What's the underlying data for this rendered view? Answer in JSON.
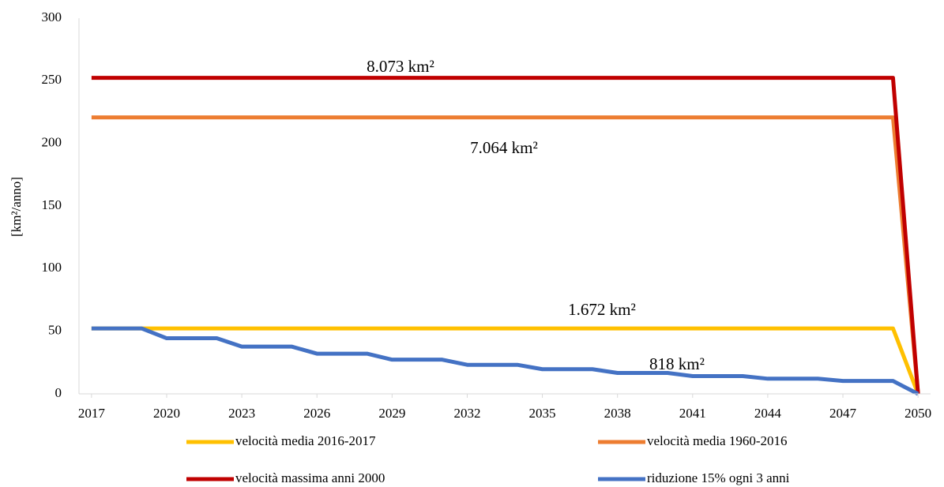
{
  "chart_data": {
    "type": "line",
    "y_label": "[km²/anno]",
    "x": [
      2017,
      2018,
      2019,
      2020,
      2021,
      2022,
      2023,
      2024,
      2025,
      2026,
      2027,
      2028,
      2029,
      2030,
      2031,
      2032,
      2033,
      2034,
      2035,
      2036,
      2037,
      2038,
      2039,
      2040,
      2041,
      2042,
      2043,
      2044,
      2045,
      2046,
      2047,
      2048,
      2049,
      2050
    ],
    "xlim": [
      2016.5,
      2050.5
    ],
    "xticks": [
      2017,
      2020,
      2023,
      2026,
      2029,
      2032,
      2035,
      2038,
      2041,
      2044,
      2047,
      2050
    ],
    "ylim": [
      0,
      300
    ],
    "yticks": [
      0,
      50,
      100,
      150,
      200,
      250,
      300
    ],
    "grid": false,
    "legend": "bottom",
    "series": [
      {
        "name": "velocità media 2016-2017",
        "color": "#ffc000",
        "values": [
          52.25,
          52.25,
          52.25,
          52.25,
          52.25,
          52.25,
          52.25,
          52.25,
          52.25,
          52.25,
          52.25,
          52.25,
          52.25,
          52.25,
          52.25,
          52.25,
          52.25,
          52.25,
          52.25,
          52.25,
          52.25,
          52.25,
          52.25,
          52.25,
          52.25,
          52.25,
          52.25,
          52.25,
          52.25,
          52.25,
          52.25,
          52.25,
          52.25,
          0
        ]
      },
      {
        "name": "velocità media 1960-2016",
        "color": "#ed7d31",
        "values": [
          220.75,
          220.75,
          220.75,
          220.75,
          220.75,
          220.75,
          220.75,
          220.75,
          220.75,
          220.75,
          220.75,
          220.75,
          220.75,
          220.75,
          220.75,
          220.75,
          220.75,
          220.75,
          220.75,
          220.75,
          220.75,
          220.75,
          220.75,
          220.75,
          220.75,
          220.75,
          220.75,
          220.75,
          220.75,
          220.75,
          220.75,
          220.75,
          220.75,
          0
        ]
      },
      {
        "name": "velocità massima anni 2000",
        "color": "#c00000",
        "values": [
          252.3,
          252.3,
          252.3,
          252.3,
          252.3,
          252.3,
          252.3,
          252.3,
          252.3,
          252.3,
          252.3,
          252.3,
          252.3,
          252.3,
          252.3,
          252.3,
          252.3,
          252.3,
          252.3,
          252.3,
          252.3,
          252.3,
          252.3,
          252.3,
          252.3,
          252.3,
          252.3,
          252.3,
          252.3,
          252.3,
          252.3,
          252.3,
          252.3,
          0
        ]
      },
      {
        "name": "riduzione 15% ogni 3 anni",
        "color": "#4472c4",
        "values": [
          52.25,
          52.25,
          52.25,
          44.4,
          44.4,
          44.4,
          37.7,
          37.7,
          37.7,
          32.1,
          32.1,
          32.1,
          27.3,
          27.3,
          27.3,
          23.2,
          23.2,
          23.2,
          19.7,
          19.7,
          19.7,
          16.7,
          16.7,
          16.7,
          14.2,
          14.2,
          14.2,
          12.1,
          12.1,
          12.1,
          10.3,
          10.3,
          10.3,
          0
        ]
      }
    ],
    "annotations": [
      "8.073 km²",
      "7.064 km²",
      "1.672 km²",
      "818 km²"
    ]
  }
}
